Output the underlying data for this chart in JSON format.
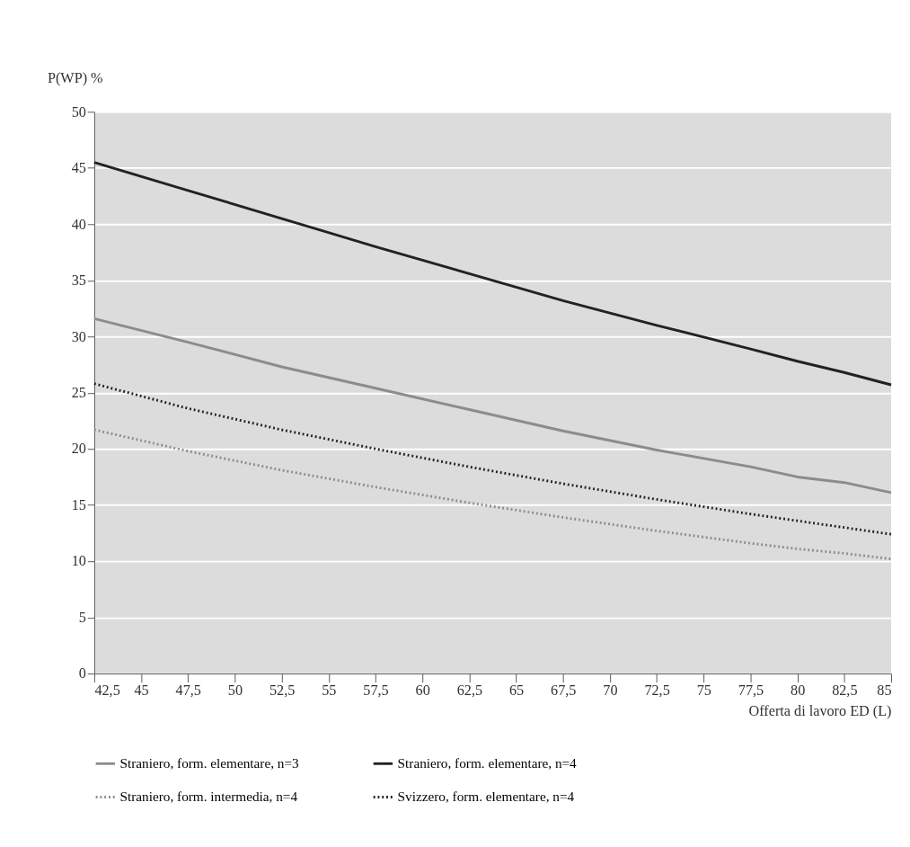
{
  "chart_data": {
    "type": "line",
    "xlabel": "Offerta di lavoro ED (L)",
    "ylabel": "P(WP) %",
    "x": [
      42.5,
      47.5,
      52.5,
      57.5,
      62.5,
      67.5,
      72.5,
      77.5,
      80,
      82.5,
      85
    ],
    "series": [
      {
        "name": "Straniero, form. elementare, n=3",
        "color": "#8c8c8c",
        "line_style": "solid",
        "values": [
          31.6,
          29.5,
          27.3,
          25.4,
          23.5,
          21.6,
          19.9,
          18.4,
          17.5,
          17.0,
          16.1
        ]
      },
      {
        "name": "Straniero, form. elementare, n=4",
        "color": "#222222",
        "line_style": "solid",
        "values": [
          45.5,
          43.0,
          40.5,
          38.0,
          35.6,
          33.2,
          31.0,
          28.9,
          27.8,
          26.8,
          25.7
        ]
      },
      {
        "name": "Straniero, form. intermedia, n=4",
        "color": "#8c8c8c",
        "line_style": "dotted",
        "values": [
          21.7,
          19.8,
          18.1,
          16.6,
          15.2,
          13.9,
          12.7,
          11.6,
          11.1,
          10.7,
          10.2
        ]
      },
      {
        "name": "Svizzero, form. elementare, n=4",
        "color": "#222222",
        "line_style": "dotted",
        "values": [
          25.8,
          23.6,
          21.7,
          20.0,
          18.4,
          16.9,
          15.5,
          14.2,
          13.6,
          13.0,
          12.4
        ]
      }
    ],
    "xlim": [
      42.5,
      85
    ],
    "xticks": [
      {
        "value": 42.5,
        "label": "42,5"
      },
      45,
      {
        "value": 47.5,
        "label": "47,5"
      },
      50,
      {
        "value": 52.5,
        "label": "52,5"
      },
      55,
      {
        "value": 57.5,
        "label": "57,5"
      },
      60,
      {
        "value": 62.5,
        "label": "62,5"
      },
      65,
      {
        "value": 67.5,
        "label": "67,5"
      },
      70,
      {
        "value": 72.5,
        "label": "72,5"
      },
      75,
      {
        "value": 77.5,
        "label": "77,5"
      },
      80,
      {
        "value": 82.5,
        "label": "82,5"
      },
      85
    ],
    "ylim": [
      0,
      50
    ],
    "yticks": [
      0,
      5,
      10,
      15,
      20,
      25,
      30,
      35,
      40,
      45,
      50
    ],
    "grid": "y",
    "legend": "bottom",
    "marker": "none"
  }
}
